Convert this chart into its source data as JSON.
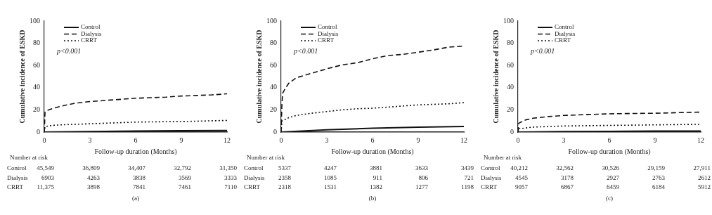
{
  "chart_data": [
    {
      "type": "line",
      "xlabel": "Follow-up duration (Months)",
      "ylabel": "Cumulative incidence of ESKD",
      "xlim": [
        0,
        12
      ],
      "xticks": [
        0,
        3,
        6,
        9,
        12
      ],
      "ylim": [
        0,
        100
      ],
      "yticks": [
        0,
        20,
        40,
        60,
        80,
        100
      ],
      "grid": false,
      "legend": "top left",
      "series": [
        {
          "name": "Control",
          "color": "#111111",
          "line_style": "solid",
          "x": [
            0,
            3,
            6,
            9,
            12
          ],
          "values": [
            0,
            0.5,
            1,
            1.2,
            1.5
          ]
        },
        {
          "name": "Dialysis",
          "color": "#111111",
          "line_style": "dashed",
          "x": [
            0,
            0.05,
            0.1,
            0.5,
            1,
            2,
            3,
            4,
            5,
            6,
            7,
            8,
            9,
            10,
            11,
            12
          ],
          "values": [
            0,
            18,
            19,
            21,
            23,
            26,
            27.5,
            28.5,
            29.5,
            30.5,
            31,
            31.5,
            32.5,
            33,
            33.5,
            34.5
          ]
        },
        {
          "name": "CRRT",
          "color": "#111111",
          "line_style": "dotted",
          "x": [
            0,
            0.05,
            0.5,
            1,
            3,
            6,
            9,
            12
          ],
          "values": [
            0,
            5,
            6,
            6.5,
            7.5,
            9,
            9.5,
            10.5
          ]
        }
      ],
      "annotations": [
        "p<0.001",
        "Number at risk",
        "Control",
        "45,549",
        "36,809",
        "34,407",
        "32,792",
        "31,350",
        "Dialysis",
        "6903",
        "4263",
        "3838",
        "3569",
        "3333",
        "CRRT",
        "11,375",
        "3898",
        "7841",
        "7461",
        "7110",
        "(a)"
      ]
    },
    {
      "type": "line",
      "xlabel": "Follow-up duration (Months)",
      "ylabel": "Cumulative incidence of ESKD",
      "xlim": [
        0,
        12
      ],
      "xticks": [
        0,
        3,
        6,
        9,
        12
      ],
      "ylim": [
        0,
        100
      ],
      "yticks": [
        0,
        20,
        40,
        60,
        80,
        100
      ],
      "grid": false,
      "legend": "top left",
      "series": [
        {
          "name": "Control",
          "color": "#111111",
          "line_style": "solid",
          "x": [
            0,
            3,
            6,
            9,
            12
          ],
          "values": [
            0,
            2,
            3.5,
            4.5,
            5
          ]
        },
        {
          "name": "Dialysis",
          "color": "#111111",
          "line_style": "dashed",
          "x": [
            0,
            0.05,
            0.1,
            0.3,
            0.5,
            1,
            2,
            3,
            4,
            5,
            6,
            7,
            8,
            9,
            10,
            11,
            12
          ],
          "values": [
            0,
            25,
            35,
            40,
            44,
            49,
            53,
            57,
            60.5,
            62.5,
            66,
            69,
            70,
            72,
            74,
            76.5,
            77.5
          ]
        },
        {
          "name": "CRRT",
          "color": "#111111",
          "line_style": "dotted",
          "x": [
            0,
            0.05,
            0.5,
            1,
            2,
            3,
            4,
            5,
            6,
            7,
            8,
            9,
            10,
            11,
            12
          ],
          "values": [
            0,
            10,
            13,
            15,
            17,
            18.5,
            20,
            21,
            21.5,
            22.5,
            23.5,
            24.5,
            25,
            25.5,
            26.5
          ]
        }
      ],
      "annotations": [
        "p<0.001",
        "Number at risk",
        "Control",
        "5337",
        "4247",
        "3881",
        "3633",
        "3439",
        "Dialysis",
        "2358",
        "1085",
        "911",
        "806",
        "721",
        "CRRT",
        "2318",
        "1531",
        "1382",
        "1277",
        "1198",
        "(b)"
      ]
    },
    {
      "type": "line",
      "xlabel": "Follow-up duration (Months)",
      "ylabel": "Cumulative incidence of ESKD",
      "xlim": [
        0,
        12
      ],
      "xticks": [
        0,
        3,
        6,
        9,
        12
      ],
      "ylim": [
        0,
        100
      ],
      "yticks": [
        0,
        20,
        40,
        60,
        80,
        100
      ],
      "grid": false,
      "legend": "top left",
      "series": [
        {
          "name": "Control",
          "color": "#111111",
          "line_style": "solid",
          "x": [
            0,
            3,
            6,
            9,
            12
          ],
          "values": [
            0,
            0.4,
            0.7,
            0.9,
            1
          ]
        },
        {
          "name": "Dialysis",
          "color": "#111111",
          "line_style": "dashed",
          "x": [
            0,
            0.05,
            0.5,
            1,
            2,
            3,
            6,
            9,
            12
          ],
          "values": [
            0,
            8,
            11,
            12.5,
            14,
            15,
            16.5,
            17,
            18
          ]
        },
        {
          "name": "CRRT",
          "color": "#111111",
          "line_style": "dotted",
          "x": [
            0,
            0.05,
            1,
            3,
            6,
            9,
            12
          ],
          "values": [
            0,
            3,
            4.5,
            5.5,
            6,
            6.5,
            7
          ]
        }
      ],
      "annotations": [
        "p<0.001",
        "Number at risk",
        "Control",
        "40,212",
        "32,562",
        "30,526",
        "29,159",
        "27,911",
        "Dialysis",
        "4545",
        "3178",
        "2927",
        "2763",
        "2612",
        "CRRT",
        "9057",
        "6867",
        "6459",
        "6184",
        "5912",
        "(c)"
      ]
    }
  ]
}
